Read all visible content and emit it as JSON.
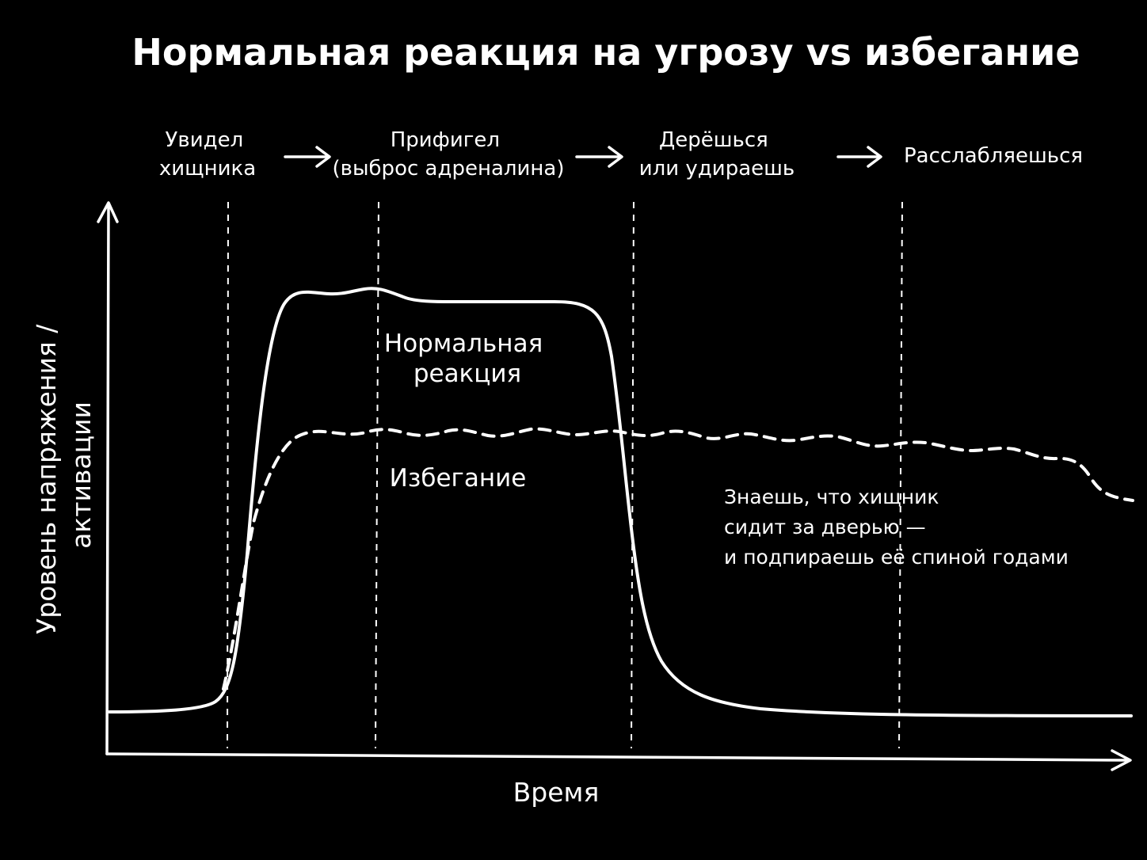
{
  "title": "Нормальная реакция на угрозу vs избегание",
  "phases": [
    {
      "lines": [
        "Увидел",
        "хищника"
      ]
    },
    {
      "lines": [
        "Прифигел",
        "(выброс адреналина)"
      ]
    },
    {
      "lines": [
        "Дерёшься",
        "или удираешь"
      ]
    },
    {
      "lines": [
        "Расслабляешься"
      ]
    }
  ],
  "axes": {
    "y_label_lines": [
      "Уровень напряжения /",
      "активации"
    ],
    "x_label": "Время"
  },
  "curves": {
    "normal": {
      "label_lines": [
        "Нормальная",
        "реакция"
      ],
      "style": "solid"
    },
    "avoidance": {
      "label": "Избегание",
      "style": "dashed"
    }
  },
  "note_lines": [
    "Знаешь, что хищник",
    "сидит за дверью —",
    "и подпираешь её спиной годами"
  ],
  "colors": {
    "background": "#000000",
    "ink": "#ffffff"
  }
}
